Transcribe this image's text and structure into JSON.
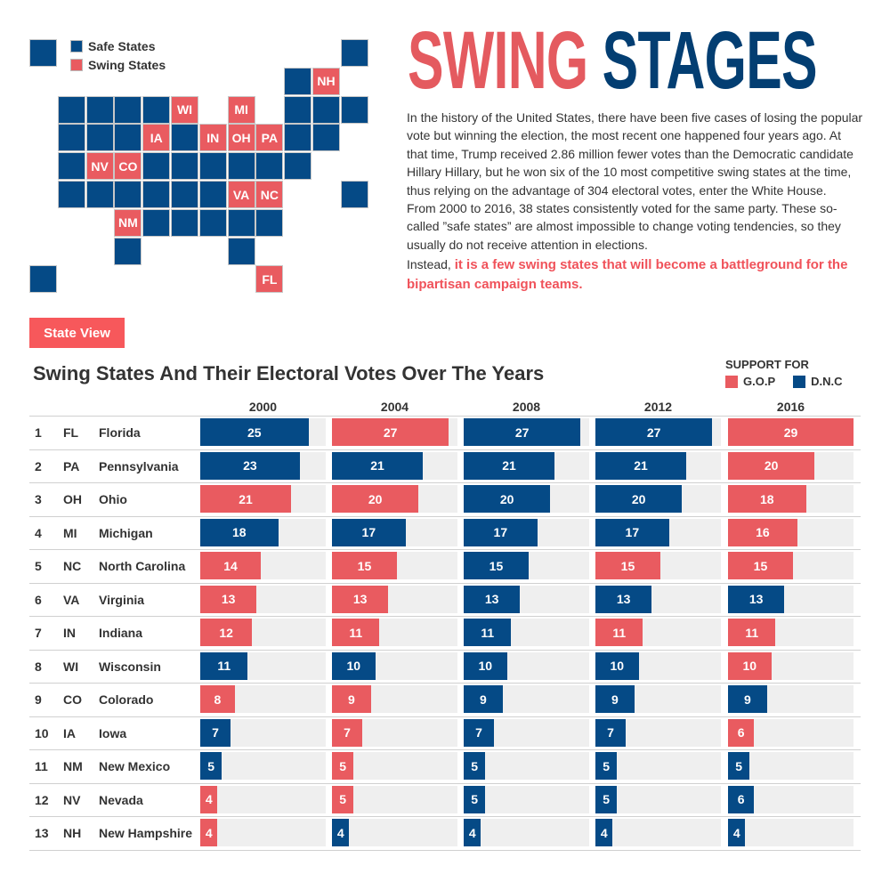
{
  "colors": {
    "gop": "#e95b60",
    "dnc": "#054a86",
    "safe": "#054a86",
    "swing": "#e95b60"
  },
  "map": {
    "legend": {
      "safe": "Safe States",
      "swing": "Swing States"
    },
    "tiles": [
      [
        0,
        0,
        "safe",
        ""
      ],
      [
        0,
        11,
        "safe",
        ""
      ],
      [
        1,
        9,
        "safe",
        ""
      ],
      [
        1,
        10,
        "swing",
        "NH"
      ],
      [
        2,
        1,
        "safe",
        ""
      ],
      [
        2,
        2,
        "safe",
        ""
      ],
      [
        2,
        3,
        "safe",
        ""
      ],
      [
        2,
        4,
        "safe",
        ""
      ],
      [
        2,
        5,
        "swing",
        "WI"
      ],
      [
        2,
        7,
        "swing",
        "MI"
      ],
      [
        2,
        9,
        "safe",
        ""
      ],
      [
        2,
        10,
        "safe",
        ""
      ],
      [
        2,
        11,
        "safe",
        ""
      ],
      [
        3,
        1,
        "safe",
        ""
      ],
      [
        3,
        2,
        "safe",
        ""
      ],
      [
        3,
        3,
        "safe",
        ""
      ],
      [
        3,
        4,
        "swing",
        "IA"
      ],
      [
        3,
        5,
        "safe",
        ""
      ],
      [
        3,
        6,
        "swing",
        "IN"
      ],
      [
        3,
        7,
        "swing",
        "OH"
      ],
      [
        3,
        8,
        "swing",
        "PA"
      ],
      [
        3,
        9,
        "safe",
        ""
      ],
      [
        3,
        10,
        "safe",
        ""
      ],
      [
        4,
        1,
        "safe",
        ""
      ],
      [
        4,
        2,
        "swing",
        "NV"
      ],
      [
        4,
        3,
        "swing",
        "CO"
      ],
      [
        4,
        4,
        "safe",
        ""
      ],
      [
        4,
        5,
        "safe",
        ""
      ],
      [
        4,
        6,
        "safe",
        ""
      ],
      [
        4,
        7,
        "safe",
        ""
      ],
      [
        4,
        8,
        "safe",
        ""
      ],
      [
        4,
        9,
        "safe",
        ""
      ],
      [
        5,
        1,
        "safe",
        ""
      ],
      [
        5,
        2,
        "safe",
        ""
      ],
      [
        5,
        3,
        "safe",
        ""
      ],
      [
        5,
        4,
        "safe",
        ""
      ],
      [
        5,
        5,
        "safe",
        ""
      ],
      [
        5,
        6,
        "safe",
        ""
      ],
      [
        5,
        7,
        "swing",
        "VA"
      ],
      [
        5,
        8,
        "swing",
        "NC"
      ],
      [
        5,
        11,
        "safe",
        ""
      ],
      [
        6,
        3,
        "swing",
        "NM"
      ],
      [
        6,
        4,
        "safe",
        ""
      ],
      [
        6,
        5,
        "safe",
        ""
      ],
      [
        6,
        6,
        "safe",
        ""
      ],
      [
        6,
        7,
        "safe",
        ""
      ],
      [
        6,
        8,
        "safe",
        ""
      ],
      [
        7,
        3,
        "safe",
        ""
      ],
      [
        7,
        7,
        "safe",
        ""
      ],
      [
        8,
        0,
        "safe",
        ""
      ],
      [
        8,
        8,
        "swing",
        "FL"
      ]
    ]
  },
  "header": {
    "title_part1": "SWING",
    "title_part2": "STAGES"
  },
  "intro": {
    "p1": "In the history of the United States, there have been five cases of losing the popular vote but winning the election, the most recent one happened four years ago. At that time, Trump received 2.86 million fewer votes than the Democratic candidate Hillary Hillary, but he won six of the 10 most competitive swing states at the time, thus relying on the advantage of 304 electoral votes, enter the White House.",
    "p2": "From 2000 to 2016, 38 states consistently voted for the same party. These so-called ”safe states” are almost impossible to change voting tendencies, so they usually do not receive attention in elections.",
    "p3_lead": "Instead, ",
    "p3_highlight": "it is a few swing states that will become a battleground for the bipartisan campaign teams."
  },
  "button": {
    "state_view": "State View"
  },
  "chart_data": {
    "type": "bar",
    "title": "Swing States And Their Electoral Votes Over The Years",
    "legend": {
      "title": "SUPPORT FOR",
      "gop": "G.O.P",
      "dnc": "D.N.C",
      "placement": "top-right"
    },
    "years": [
      "2000",
      "2004",
      "2008",
      "2012",
      "2016"
    ],
    "xlim": [
      0,
      29
    ],
    "rows": [
      {
        "rank": "1",
        "abbr": "FL",
        "name": "Florida",
        "votes": [
          25,
          27,
          27,
          27,
          29
        ],
        "party": [
          "D",
          "R",
          "D",
          "D",
          "R"
        ]
      },
      {
        "rank": "2",
        "abbr": "PA",
        "name": "Pennsylvania",
        "votes": [
          23,
          21,
          21,
          21,
          20
        ],
        "party": [
          "D",
          "D",
          "D",
          "D",
          "R"
        ]
      },
      {
        "rank": "3",
        "abbr": "OH",
        "name": "Ohio",
        "votes": [
          21,
          20,
          20,
          20,
          18
        ],
        "party": [
          "R",
          "R",
          "D",
          "D",
          "R"
        ]
      },
      {
        "rank": "4",
        "abbr": "MI",
        "name": "Michigan",
        "votes": [
          18,
          17,
          17,
          17,
          16
        ],
        "party": [
          "D",
          "D",
          "D",
          "D",
          "R"
        ]
      },
      {
        "rank": "5",
        "abbr": "NC",
        "name": "North Carolina",
        "votes": [
          14,
          15,
          15,
          15,
          15
        ],
        "party": [
          "R",
          "R",
          "D",
          "R",
          "R"
        ]
      },
      {
        "rank": "6",
        "abbr": "VA",
        "name": "Virginia",
        "votes": [
          13,
          13,
          13,
          13,
          13
        ],
        "party": [
          "R",
          "R",
          "D",
          "D",
          "D"
        ]
      },
      {
        "rank": "7",
        "abbr": "IN",
        "name": "Indiana",
        "votes": [
          12,
          11,
          11,
          11,
          11
        ],
        "party": [
          "R",
          "R",
          "D",
          "R",
          "R"
        ]
      },
      {
        "rank": "8",
        "abbr": "WI",
        "name": "Wisconsin",
        "votes": [
          11,
          10,
          10,
          10,
          10
        ],
        "party": [
          "D",
          "D",
          "D",
          "D",
          "R"
        ]
      },
      {
        "rank": "9",
        "abbr": "CO",
        "name": "Colorado",
        "votes": [
          8,
          9,
          9,
          9,
          9
        ],
        "party": [
          "R",
          "R",
          "D",
          "D",
          "D"
        ]
      },
      {
        "rank": "10",
        "abbr": "IA",
        "name": "Iowa",
        "votes": [
          7,
          7,
          7,
          7,
          6
        ],
        "party": [
          "D",
          "R",
          "D",
          "D",
          "R"
        ]
      },
      {
        "rank": "11",
        "abbr": "NM",
        "name": "New Mexico",
        "votes": [
          5,
          5,
          5,
          5,
          5
        ],
        "party": [
          "D",
          "R",
          "D",
          "D",
          "D"
        ]
      },
      {
        "rank": "12",
        "abbr": "NV",
        "name": "Nevada",
        "votes": [
          4,
          5,
          5,
          5,
          6
        ],
        "party": [
          "R",
          "R",
          "D",
          "D",
          "D"
        ]
      },
      {
        "rank": "13",
        "abbr": "NH",
        "name": "New Hampshire",
        "votes": [
          4,
          4,
          4,
          4,
          4
        ],
        "party": [
          "R",
          "D",
          "D",
          "D",
          "D"
        ]
      }
    ]
  }
}
